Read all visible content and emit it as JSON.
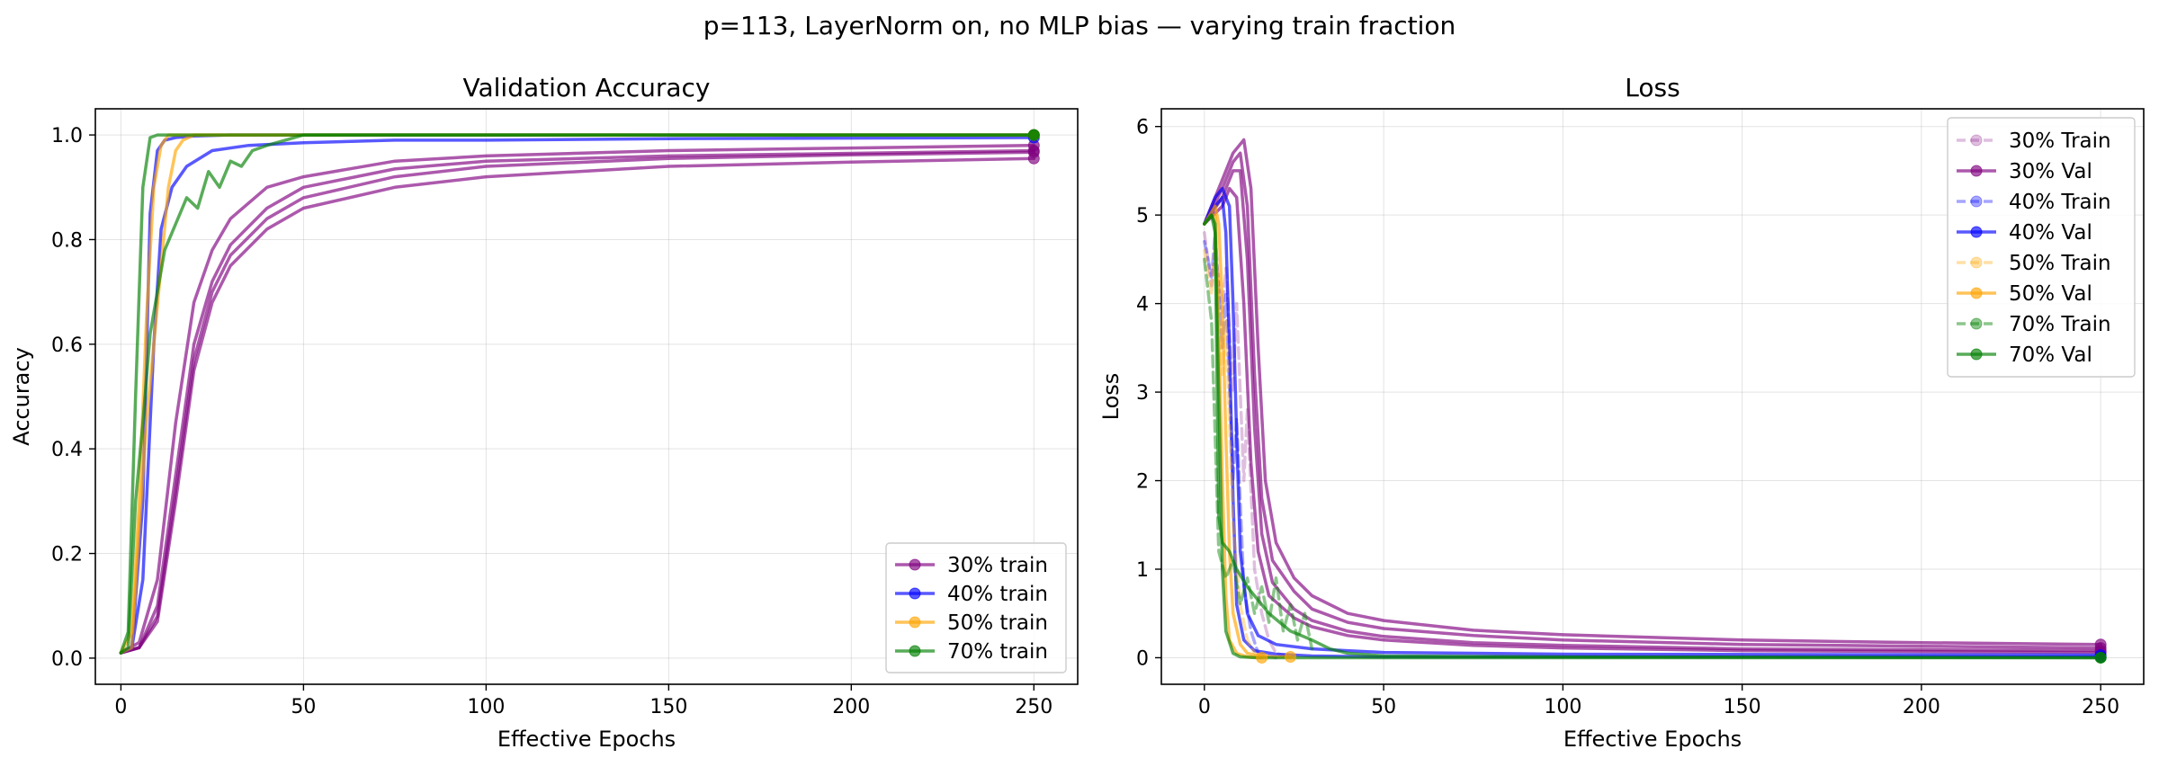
{
  "figure": {
    "suptitle": "p=113, LayerNorm on, no MLP bias — varying train fraction"
  },
  "chart_data": [
    {
      "type": "line",
      "title": "Validation Accuracy",
      "xlabel": "Effective Epochs",
      "ylabel": "Accuracy",
      "xlim": [
        -7,
        262
      ],
      "ylim": [
        -0.05,
        1.05
      ],
      "xticks": [
        0,
        50,
        100,
        150,
        200,
        250
      ],
      "yticks": [
        0.0,
        0.2,
        0.4,
        0.6,
        0.8,
        1.0
      ],
      "ytick_labels": [
        "0.0",
        "0.2",
        "0.4",
        "0.6",
        "0.8",
        "1.0"
      ],
      "grid": true,
      "legend_position": "bottom-right",
      "legend": [
        {
          "label": "30% train",
          "color": "#800080",
          "style": "solid",
          "alpha": 0.65
        },
        {
          "label": "40% train",
          "color": "#0000ff",
          "style": "solid",
          "alpha": 0.65
        },
        {
          "label": "50% train",
          "color": "#ffa500",
          "style": "solid",
          "alpha": 0.65
        },
        {
          "label": "70% train",
          "color": "#008000",
          "style": "solid",
          "alpha": 0.65
        }
      ],
      "series": [
        {
          "group": "30% train",
          "color": "#800080",
          "end_marker": true,
          "x": [
            0,
            5,
            10,
            15,
            20,
            25,
            30,
            40,
            50,
            75,
            100,
            150,
            200,
            250
          ],
          "y": [
            0.01,
            0.02,
            0.1,
            0.35,
            0.6,
            0.72,
            0.79,
            0.86,
            0.9,
            0.935,
            0.95,
            0.96,
            0.965,
            0.97
          ]
        },
        {
          "group": "30% train",
          "color": "#800080",
          "end_marker": true,
          "x": [
            0,
            5,
            10,
            15,
            20,
            25,
            30,
            40,
            50,
            75,
            100,
            150,
            200,
            250
          ],
          "y": [
            0.01,
            0.02,
            0.07,
            0.3,
            0.55,
            0.68,
            0.75,
            0.82,
            0.86,
            0.9,
            0.92,
            0.94,
            0.948,
            0.955
          ]
        },
        {
          "group": "30% train",
          "color": "#800080",
          "end_marker": true,
          "x": [
            0,
            5,
            10,
            15,
            20,
            25,
            30,
            40,
            50,
            75,
            100,
            150,
            200,
            250
          ],
          "y": [
            0.01,
            0.03,
            0.15,
            0.45,
            0.68,
            0.78,
            0.84,
            0.9,
            0.92,
            0.95,
            0.96,
            0.97,
            0.975,
            0.98
          ]
        },
        {
          "group": "30% train",
          "color": "#800080",
          "end_marker": true,
          "x": [
            0,
            5,
            10,
            15,
            20,
            25,
            30,
            40,
            50,
            75,
            100,
            150,
            200,
            250
          ],
          "y": [
            0.01,
            0.02,
            0.08,
            0.32,
            0.57,
            0.7,
            0.77,
            0.84,
            0.88,
            0.92,
            0.94,
            0.955,
            0.962,
            0.967
          ]
        },
        {
          "group": "40% train",
          "color": "#0000ff",
          "end_marker": true,
          "x": [
            0,
            3,
            6,
            9,
            11,
            14,
            18,
            25,
            35,
            50,
            75,
            100,
            150,
            250
          ],
          "y": [
            0.01,
            0.02,
            0.15,
            0.6,
            0.82,
            0.9,
            0.94,
            0.97,
            0.98,
            0.985,
            0.99,
            0.99,
            0.993,
            0.995
          ]
        },
        {
          "group": "40% train",
          "color": "#0000ff",
          "end_marker": true,
          "x": [
            0,
            3,
            6,
            8,
            10,
            12,
            15,
            20,
            30,
            50,
            250
          ],
          "y": [
            0.01,
            0.02,
            0.3,
            0.85,
            0.97,
            0.99,
            0.995,
            0.998,
            1.0,
            1.0,
            1.0
          ]
        },
        {
          "group": "50% train",
          "color": "#ffa500",
          "end_marker": true,
          "x": [
            0,
            3,
            5,
            7,
            9,
            11,
            13,
            15,
            17,
            20,
            25,
            30,
            50,
            250
          ],
          "y": [
            0.01,
            0.02,
            0.25,
            0.45,
            0.6,
            0.75,
            0.9,
            0.97,
            0.99,
            1.0,
            1.0,
            1.0,
            1.0,
            1.0
          ]
        },
        {
          "group": "50% train",
          "color": "#ffa500",
          "end_marker": true,
          "x": [
            0,
            3,
            5,
            7,
            9,
            11,
            13,
            16,
            20,
            30,
            250
          ],
          "y": [
            0.01,
            0.05,
            0.3,
            0.65,
            0.9,
            0.98,
            1.0,
            1.0,
            1.0,
            1.0,
            1.0
          ]
        },
        {
          "group": "70% train",
          "color": "#008000",
          "end_marker": true,
          "x": [
            0,
            2,
            4,
            6,
            8,
            10,
            12,
            15,
            18,
            21,
            24,
            27,
            30,
            33,
            36,
            40,
            45,
            50,
            100,
            250
          ],
          "y": [
            0.01,
            0.02,
            0.3,
            0.45,
            0.62,
            0.7,
            0.78,
            0.83,
            0.88,
            0.86,
            0.93,
            0.9,
            0.95,
            0.94,
            0.97,
            0.98,
            0.99,
            1.0,
            1.0,
            1.0
          ]
        },
        {
          "group": "70% train",
          "color": "#008000",
          "end_marker": true,
          "x": [
            0,
            2,
            4,
            6,
            8,
            10,
            15,
            20,
            50,
            250
          ],
          "y": [
            0.01,
            0.05,
            0.5,
            0.9,
            0.995,
            1.0,
            1.0,
            1.0,
            1.0,
            1.0
          ]
        }
      ]
    },
    {
      "type": "line",
      "title": "Loss",
      "xlabel": "Effective Epochs",
      "ylabel": "Loss",
      "xlim": [
        -12,
        262
      ],
      "ylim": [
        -0.3,
        6.2
      ],
      "xticks": [
        0,
        50,
        100,
        150,
        200,
        250
      ],
      "yticks": [
        0,
        1,
        2,
        3,
        4,
        5,
        6
      ],
      "ytick_labels": [
        "0",
        "1",
        "2",
        "3",
        "4",
        "5",
        "6"
      ],
      "grid": true,
      "legend_position": "top-right",
      "legend": [
        {
          "label": "30% Train",
          "color": "#800080",
          "style": "dashed",
          "alpha": 0.25
        },
        {
          "label": "30% Val",
          "color": "#800080",
          "style": "solid",
          "alpha": 0.65
        },
        {
          "label": "40% Train",
          "color": "#0000ff",
          "style": "dashed",
          "alpha": 0.35
        },
        {
          "label": "40% Val",
          "color": "#0000ff",
          "style": "solid",
          "alpha": 0.65
        },
        {
          "label": "50% Train",
          "color": "#ffa500",
          "style": "dashed",
          "alpha": 0.35
        },
        {
          "label": "50% Val",
          "color": "#ffa500",
          "style": "solid",
          "alpha": 0.65
        },
        {
          "label": "70% Train",
          "color": "#008000",
          "style": "dashed",
          "alpha": 0.45
        },
        {
          "label": "70% Val",
          "color": "#008000",
          "style": "solid",
          "alpha": 0.65
        }
      ],
      "series": [
        {
          "group": "30% Train",
          "color": "#800080",
          "style": "dashed",
          "alpha": 0.25,
          "end_marker": false,
          "x": [
            0,
            2,
            3,
            5,
            6,
            8,
            9,
            11,
            12,
            14,
            16,
            18,
            20,
            25
          ],
          "y": [
            4.8,
            4.2,
            4.6,
            3.9,
            4.4,
            3.0,
            4.0,
            2.0,
            2.8,
            1.0,
            0.5,
            0.2,
            0.05,
            0.0
          ]
        },
        {
          "group": "30% Val",
          "color": "#800080",
          "style": "solid",
          "alpha": 0.65,
          "end_marker": true,
          "x": [
            0,
            5,
            8,
            11,
            13,
            15,
            17,
            20,
            25,
            30,
            40,
            50,
            75,
            100,
            150,
            200,
            250
          ],
          "y": [
            4.9,
            5.4,
            5.7,
            5.85,
            5.3,
            3.5,
            2.0,
            1.3,
            0.9,
            0.7,
            0.5,
            0.42,
            0.31,
            0.26,
            0.2,
            0.17,
            0.15
          ]
        },
        {
          "group": "30% Val",
          "color": "#800080",
          "style": "solid",
          "alpha": 0.65,
          "end_marker": true,
          "x": [
            0,
            5,
            8,
            10,
            12,
            14,
            16,
            19,
            25,
            30,
            40,
            50,
            75,
            100,
            150,
            200,
            250
          ],
          "y": [
            4.9,
            5.3,
            5.6,
            5.7,
            5.1,
            3.2,
            1.8,
            1.1,
            0.75,
            0.55,
            0.4,
            0.33,
            0.25,
            0.2,
            0.15,
            0.13,
            0.11
          ]
        },
        {
          "group": "30% Val",
          "color": "#800080",
          "style": "solid",
          "alpha": 0.65,
          "end_marker": true,
          "x": [
            0,
            5,
            8,
            10,
            12,
            14,
            16,
            19,
            25,
            30,
            40,
            50,
            75,
            100,
            150,
            200,
            250
          ],
          "y": [
            4.9,
            5.2,
            5.5,
            5.5,
            4.5,
            2.6,
            1.4,
            0.85,
            0.55,
            0.42,
            0.3,
            0.24,
            0.17,
            0.14,
            0.1,
            0.09,
            0.08
          ]
        },
        {
          "group": "30% Val",
          "color": "#800080",
          "style": "solid",
          "alpha": 0.65,
          "end_marker": true,
          "x": [
            0,
            5,
            7,
            9,
            11,
            13,
            15,
            18,
            25,
            30,
            40,
            50,
            75,
            100,
            150,
            200,
            250
          ],
          "y": [
            4.9,
            5.1,
            5.3,
            5.2,
            4.0,
            2.2,
            1.2,
            0.7,
            0.45,
            0.35,
            0.25,
            0.2,
            0.14,
            0.11,
            0.08,
            0.07,
            0.06
          ]
        },
        {
          "group": "40% Train",
          "color": "#0000ff",
          "style": "dashed",
          "alpha": 0.35,
          "end_marker": false,
          "x": [
            0,
            2,
            3,
            5,
            6,
            8,
            9,
            11,
            13,
            15,
            20
          ],
          "y": [
            4.7,
            4.3,
            4.8,
            3.5,
            4.1,
            2.0,
            2.7,
            0.8,
            0.3,
            0.05,
            0.0
          ]
        },
        {
          "group": "40% Val",
          "color": "#0000ff",
          "style": "solid",
          "alpha": 0.65,
          "end_marker": true,
          "x": [
            0,
            3,
            5,
            7,
            8,
            9,
            10,
            12,
            15,
            20,
            30,
            50,
            100,
            250
          ],
          "y": [
            4.9,
            5.2,
            5.3,
            5.1,
            4.0,
            2.5,
            1.2,
            0.5,
            0.25,
            0.15,
            0.1,
            0.06,
            0.04,
            0.03
          ]
        },
        {
          "group": "40% Val",
          "color": "#0000ff",
          "style": "solid",
          "alpha": 0.65,
          "end_marker": true,
          "x": [
            0,
            3,
            5,
            6,
            7,
            8,
            9,
            11,
            14,
            20,
            30,
            50,
            250
          ],
          "y": [
            4.9,
            5.1,
            5.2,
            4.8,
            3.5,
            1.8,
            0.6,
            0.2,
            0.08,
            0.04,
            0.02,
            0.01,
            0.01
          ]
        },
        {
          "group": "50% Train",
          "color": "#ffa500",
          "style": "dashed",
          "alpha": 0.35,
          "end_marker": false,
          "x": [
            0,
            2,
            3,
            5,
            6,
            8,
            10,
            12,
            14,
            17
          ],
          "y": [
            4.6,
            4.1,
            4.7,
            3.2,
            3.8,
            1.5,
            0.6,
            0.2,
            0.05,
            0.0
          ]
        },
        {
          "group": "50% Val",
          "color": "#ffa500",
          "style": "solid",
          "alpha": 0.65,
          "end_marker": true,
          "x": [
            0,
            3,
            4,
            5,
            6,
            7,
            8,
            10,
            12,
            15,
            20,
            24
          ],
          "y": [
            4.9,
            5.1,
            4.9,
            4.0,
            2.5,
            1.2,
            0.5,
            0.15,
            0.05,
            0.02,
            0.01,
            0.01
          ]
        },
        {
          "group": "50% Val",
          "color": "#ffa500",
          "style": "solid",
          "alpha": 0.65,
          "end_marker": true,
          "x": [
            0,
            2,
            3,
            4,
            5,
            6,
            7,
            9,
            12,
            16
          ],
          "y": [
            4.9,
            5.0,
            5.0,
            3.8,
            2.0,
            0.7,
            0.2,
            0.05,
            0.01,
            0.0
          ]
        },
        {
          "group": "70% Train",
          "color": "#008000",
          "style": "dashed",
          "alpha": 0.45,
          "end_marker": false,
          "x": [
            0,
            2,
            4,
            6,
            8,
            10,
            12,
            14,
            16,
            18,
            20,
            22,
            24,
            26,
            28,
            30
          ],
          "y": [
            4.5,
            3.8,
            1.2,
            0.9,
            1.1,
            0.6,
            0.9,
            0.5,
            0.8,
            0.4,
            0.9,
            0.3,
            0.6,
            0.2,
            0.5,
            0.1
          ]
        },
        {
          "group": "70% Val",
          "color": "#008000",
          "style": "solid",
          "alpha": 0.65,
          "end_marker": true,
          "x": [
            0,
            2,
            3,
            4,
            5,
            7,
            9,
            12,
            15,
            18,
            21,
            24,
            27,
            30,
            35,
            40,
            50,
            100,
            250
          ],
          "y": [
            4.9,
            5.0,
            4.8,
            1.6,
            1.3,
            1.2,
            1.0,
            0.8,
            0.65,
            0.5,
            0.4,
            0.3,
            0.25,
            0.2,
            0.1,
            0.05,
            0.02,
            0.01,
            0.0
          ]
        },
        {
          "group": "70% Val",
          "color": "#008000",
          "style": "solid",
          "alpha": 0.65,
          "end_marker": true,
          "x": [
            0,
            2,
            3,
            4,
            5,
            6,
            8,
            10,
            15,
            250
          ],
          "y": [
            4.9,
            5.0,
            4.9,
            3.0,
            1.0,
            0.3,
            0.05,
            0.01,
            0.0,
            0.0
          ]
        }
      ]
    }
  ]
}
